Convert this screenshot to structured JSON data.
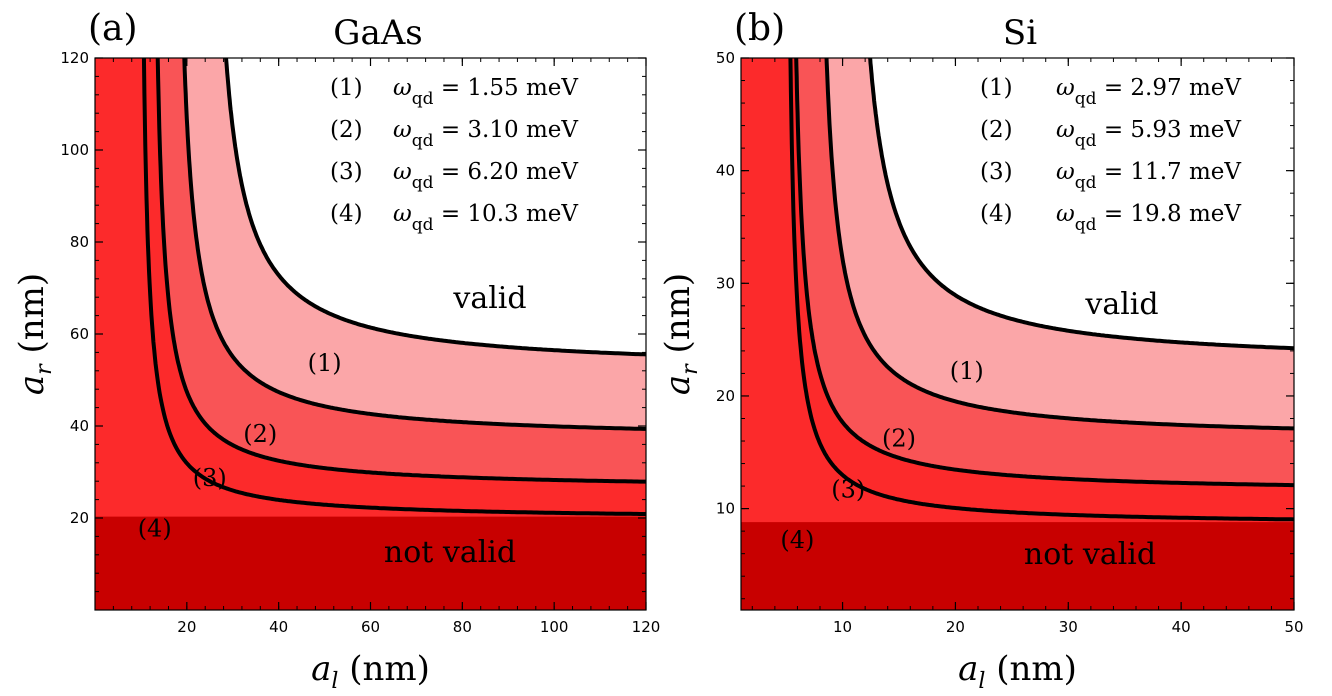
{
  "chart_data": [
    {
      "type": "area",
      "panel_label": "(a)",
      "title": "GaAs",
      "xlabel": {
        "symbol": "a",
        "sub": "l",
        "unit": " (nm)"
      },
      "ylabel": {
        "symbol": "a",
        "sub": "r",
        "unit": " (nm)"
      },
      "xlim": [
        0,
        120
      ],
      "ylim": [
        0,
        120
      ],
      "xticks": [
        20,
        40,
        60,
        80,
        100,
        120
      ],
      "yticks": [
        20,
        40,
        60,
        80,
        100,
        120
      ],
      "legend_placement": "top-right",
      "region_labels": {
        "valid": "valid",
        "not_valid": "not valid"
      },
      "series": [
        {
          "tag": "(1)",
          "legend_symbol": "ω",
          "legend_sub": "qd",
          "legend_value": " = 1.55 meV",
          "x_asymptote": 23.5,
          "y_asymptote": 52.0,
          "label_at": [
            50,
            52
          ]
        },
        {
          "tag": "(2)",
          "legend_symbol": "ω",
          "legend_sub": "qd",
          "legend_value": " = 3.10 meV",
          "x_asymptote": 16.5,
          "y_asymptote": 37.0,
          "label_at": [
            36,
            36.5
          ]
        },
        {
          "tag": "(3)",
          "legend_symbol": "ω",
          "legend_sub": "qd",
          "legend_value": " = 6.20 meV",
          "x_asymptote": 11.8,
          "y_asymptote": 26.3,
          "label_at": [
            25,
            27
          ]
        },
        {
          "tag": "(4)",
          "legend_symbol": "ω",
          "legend_sub": "qd",
          "legend_value": " = 10.3 meV",
          "x_asymptote": 0,
          "y_asymptote": 20.3,
          "label_at": [
            13,
            16
          ]
        }
      ],
      "colors": [
        "#ffffff",
        "#fba6a8",
        "#f95456",
        "#fc2a2b",
        "#c80000"
      ]
    },
    {
      "type": "area",
      "panel_label": "(b)",
      "title": "Si",
      "xlabel": {
        "symbol": "a",
        "sub": "l",
        "unit": " (nm)"
      },
      "ylabel": {
        "symbol": "a",
        "sub": "r",
        "unit": " (nm)"
      },
      "xlim": [
        1,
        50
      ],
      "ylim": [
        1,
        50
      ],
      "xticks": [
        10,
        20,
        30,
        40,
        50
      ],
      "yticks": [
        10,
        20,
        30,
        40,
        50
      ],
      "legend_placement": "top-right",
      "region_labels": {
        "valid": "valid",
        "not_valid": "not valid"
      },
      "series": [
        {
          "tag": "(1)",
          "legend_symbol": "ω",
          "legend_sub": "qd",
          "legend_value": " = 2.97 meV",
          "x_asymptote": 10.2,
          "y_asymptote": 22.7,
          "label_at": [
            21,
            21.5
          ]
        },
        {
          "tag": "(2)",
          "legend_symbol": "ω",
          "legend_sub": "qd",
          "legend_value": " = 5.93 meV",
          "x_asymptote": 7.3,
          "y_asymptote": 16.1,
          "label_at": [
            15,
            15.5
          ]
        },
        {
          "tag": "(3)",
          "legend_symbol": "ω",
          "legend_sub": "qd",
          "legend_value": " = 11.7 meV",
          "x_asymptote": 5.1,
          "y_asymptote": 11.4,
          "label_at": [
            10.5,
            11
          ]
        },
        {
          "tag": "(4)",
          "legend_symbol": "ω",
          "legend_sub": "qd",
          "legend_value": " = 19.8 meV",
          "x_asymptote": 0,
          "y_asymptote": 8.8,
          "label_at": [
            6,
            6.5
          ]
        }
      ],
      "colors": [
        "#ffffff",
        "#fba6a8",
        "#f95456",
        "#fc2a2b",
        "#c80000"
      ]
    }
  ]
}
